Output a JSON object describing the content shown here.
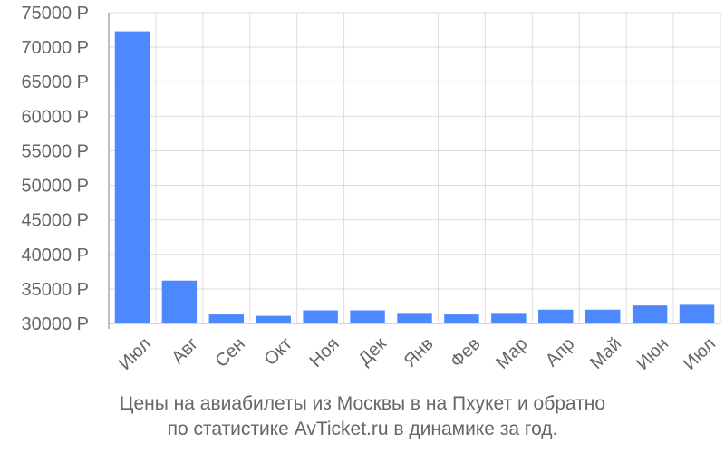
{
  "chart_data": {
    "type": "bar",
    "categories": [
      "Июл",
      "Авг",
      "Сен",
      "Окт",
      "Ноя",
      "Дек",
      "Янв",
      "Фев",
      "Мар",
      "Апр",
      "Май",
      "Июн",
      "Июл"
    ],
    "values": [
      72300,
      36200,
      31300,
      31100,
      31900,
      31900,
      31400,
      31300,
      31400,
      32000,
      32000,
      32600,
      32700
    ],
    "ylim": [
      30000,
      75000
    ],
    "yticks": [
      30000,
      35000,
      40000,
      45000,
      50000,
      55000,
      60000,
      65000,
      70000,
      75000
    ],
    "ytick_suffix": " Р",
    "grid": true,
    "bar_color": "#4d88ff",
    "grid_color": "#dddddd",
    "axis_color": "#aaaaaa"
  },
  "caption": {
    "line1": "Цены на авиабилеты из Москвы в на Пхукет и обратно",
    "line2": "по статистике AvTicket.ru в динамике за год."
  }
}
